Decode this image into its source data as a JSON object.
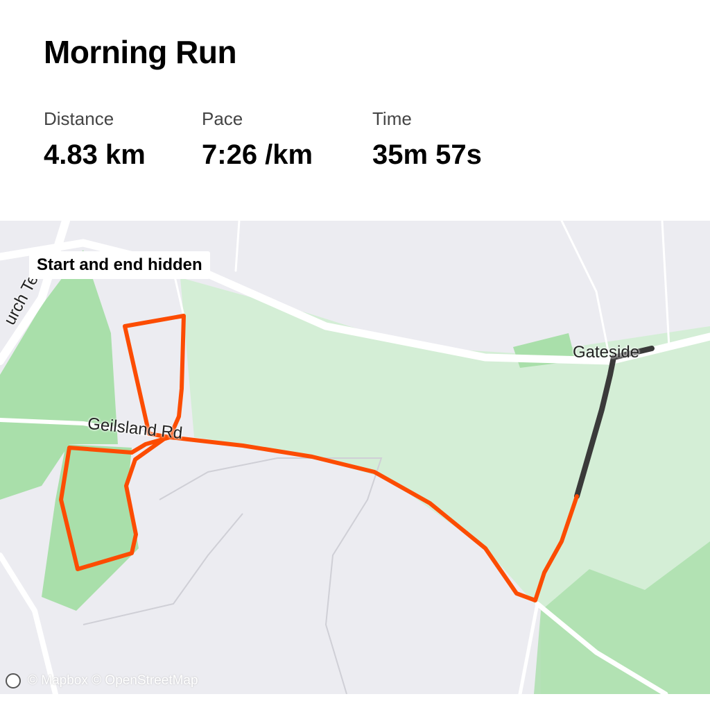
{
  "activity": {
    "title": "Morning Run"
  },
  "stats": [
    {
      "label": "Distance",
      "value": "4.83 km"
    },
    {
      "label": "Pace",
      "value": "7:26 /km"
    },
    {
      "label": "Time",
      "value": "35m 57s"
    }
  ],
  "map": {
    "privacy_badge": "Start and end hidden",
    "labels": {
      "town": "Gateside",
      "road": "Geilsland Rd",
      "street": "urch Te"
    },
    "attribution": "© Mapbox © OpenStreetMap",
    "logo_icon": "mapbox-logo-icon",
    "colors": {
      "route": "#fc4c02",
      "hidden_route": "#3a3a3a",
      "park": "#d4eed6",
      "wood": "#a9dfaa",
      "land": "#ececf1",
      "road": "#ffffff"
    }
  }
}
